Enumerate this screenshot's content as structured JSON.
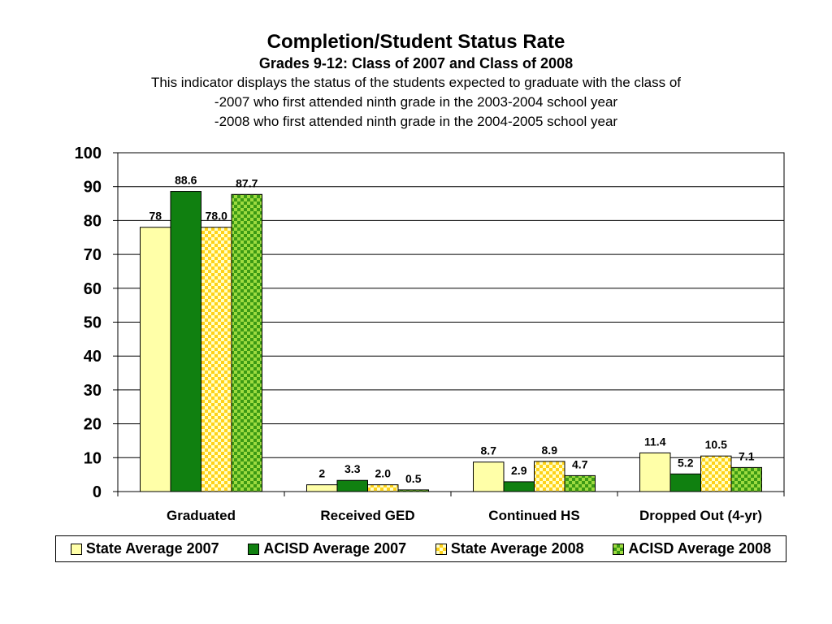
{
  "header": {
    "title": "Completion/Student Status Rate",
    "subtitle": "Grades 9-12: Class of 2007 and Class of 2008",
    "description_lines": [
      "This indicator displays the status of the students expected to graduate with the class of",
      "-2007 who first attended ninth grade in the 2003-2004 school year",
      "-2008 who first attended ninth grade in the 2004-2005 school year"
    ]
  },
  "colors": {
    "state_2007": "#FFFFA8",
    "acisd_2007": "#108010",
    "state_2008_base": "#FFD21A",
    "state_2008_pattern": "#FFFFC8",
    "acisd_2008_base": "#3C9A14",
    "acisd_2008_pattern": "#9EDB40"
  },
  "chart_data": {
    "type": "bar",
    "categories": [
      "Graduated",
      "Received GED",
      "Continued HS",
      "Dropped Out (4-yr)"
    ],
    "series": [
      {
        "name": "State Average 2007",
        "values": [
          78,
          2,
          8.7,
          11.4
        ],
        "labels": [
          "78",
          "2",
          "8.7",
          "11.4"
        ],
        "fill": "solid",
        "color_key": "state_2007"
      },
      {
        "name": "ACISD Average 2007",
        "values": [
          88.6,
          3.3,
          2.9,
          5.2
        ],
        "labels": [
          "88.6",
          "3.3",
          "2.9",
          "5.2"
        ],
        "fill": "solid",
        "color_key": "acisd_2007"
      },
      {
        "name": "State Average 2008",
        "values": [
          78.0,
          2.0,
          8.9,
          10.5
        ],
        "labels": [
          "78.0",
          "2.0",
          "8.9",
          "10.5"
        ],
        "fill": "checker",
        "color_key": "state_2008"
      },
      {
        "name": "ACISD Average 2008",
        "values": [
          87.7,
          0.5,
          4.7,
          7.1
        ],
        "labels": [
          "87.7",
          "0.5",
          "4.7",
          "7.1"
        ],
        "fill": "checker",
        "color_key": "acisd_2008"
      }
    ],
    "ylim": [
      0,
      100
    ],
    "yticks": [
      "0",
      "10",
      "20",
      "30",
      "40",
      "50",
      "60",
      "70",
      "80",
      "90",
      "100"
    ],
    "grid": true,
    "legend_position": "bottom"
  }
}
